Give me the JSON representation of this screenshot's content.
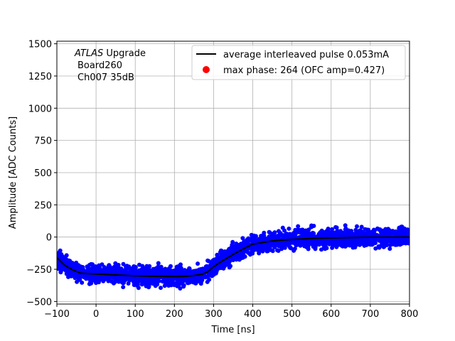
{
  "chart_data": {
    "type": "scatter",
    "xlabel": "Time [ns]",
    "ylabel": "Amplitude [ADC Counts]",
    "xlim": [
      -100,
      800
    ],
    "ylim": [
      -520,
      1520
    ],
    "xticks": [
      -100,
      0,
      100,
      200,
      300,
      400,
      500,
      600,
      700,
      800
    ],
    "xtick_labels": [
      "−100",
      "0",
      "100",
      "200",
      "300",
      "400",
      "500",
      "600",
      "700",
      "800"
    ],
    "yticks": [
      -500,
      -250,
      0,
      250,
      500,
      750,
      1000,
      1250,
      1500
    ],
    "ytick_labels": [
      "−500",
      "−250",
      "0",
      "250",
      "500",
      "750",
      "1000",
      "1250",
      "1500"
    ],
    "grid": true,
    "legend_position": "top-right",
    "annotation": {
      "line1_italic": "ATLAS",
      "line1_rest": " Upgrade",
      "line2": "Board260",
      "line3": "Ch007 35dB"
    },
    "series": [
      {
        "name": "average interleaved pulse 0.053mA",
        "kind": "line",
        "color": "#000000",
        "x": [
          -100,
          -80,
          -60,
          -40,
          0,
          50,
          100,
          150,
          200,
          225,
          250,
          270,
          285,
          300,
          320,
          350,
          380,
          400,
          450,
          500,
          550,
          600,
          650,
          700,
          750,
          800
        ],
        "y": [
          -160,
          -220,
          -255,
          -280,
          -287,
          -294,
          -301,
          -305,
          -307,
          -306,
          -298,
          -290,
          -270,
          -230,
          -190,
          -135,
          -85,
          -55,
          -30,
          -18,
          -11,
          -7,
          -4,
          -2,
          -1,
          0
        ]
      },
      {
        "name": "max phase: 264 (OFC amp=0.427)",
        "kind": "marker",
        "color": "#ff0000"
      },
      {
        "name": "samples",
        "kind": "scatter",
        "color": "#0000ff",
        "x_range": [
          -100,
          800
        ],
        "spread": 35
      }
    ]
  }
}
